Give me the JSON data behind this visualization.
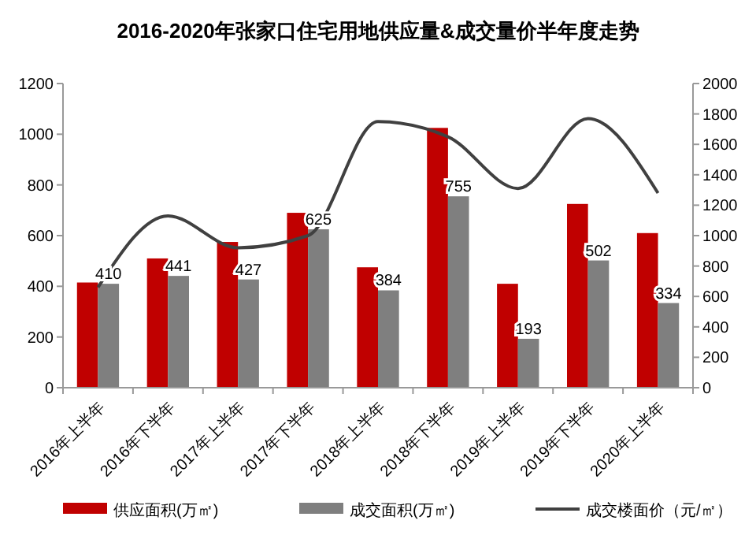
{
  "chart_data": {
    "type": "bar",
    "title": "2016-2020年张家口住宅用地供应量&成交量价半年度走势",
    "categories": [
      "2016年上半年",
      "2016年下半年",
      "2017年上半年",
      "2017年下半年",
      "2018年上半年",
      "2018年下半年",
      "2019年上半年",
      "2019年下半年",
      "2020年上半年"
    ],
    "series": [
      {
        "name": "供应面积(万㎡)",
        "color": "#c00000",
        "values": [
          415,
          510,
          575,
          690,
          475,
          1025,
          410,
          725,
          610
        ]
      },
      {
        "name": "成交面积(万㎡)",
        "color": "#7f7f7f",
        "values": [
          410,
          441,
          427,
          625,
          384,
          755,
          193,
          502,
          334
        ],
        "value_labels": [
          "410",
          "441",
          "427",
          "625",
          "384",
          "755",
          "193",
          "502",
          "334"
        ]
      },
      {
        "name": "成交楼面价（元/㎡）",
        "color": "#404040",
        "type": "line",
        "axis": "y2",
        "values": [
          660,
          1130,
          920,
          1000,
          1750,
          1650,
          1310,
          1770,
          1280
        ]
      }
    ],
    "ylim": [
      0,
      1200
    ],
    "yticks": [
      0,
      200,
      400,
      600,
      800,
      1000,
      1200
    ],
    "y2lim": [
      0,
      2000
    ],
    "y2ticks": [
      0,
      200,
      400,
      600,
      800,
      1000,
      1200,
      1400,
      1600,
      1800,
      2000
    ],
    "grid": false,
    "legend": "bottom",
    "marker": "none"
  }
}
